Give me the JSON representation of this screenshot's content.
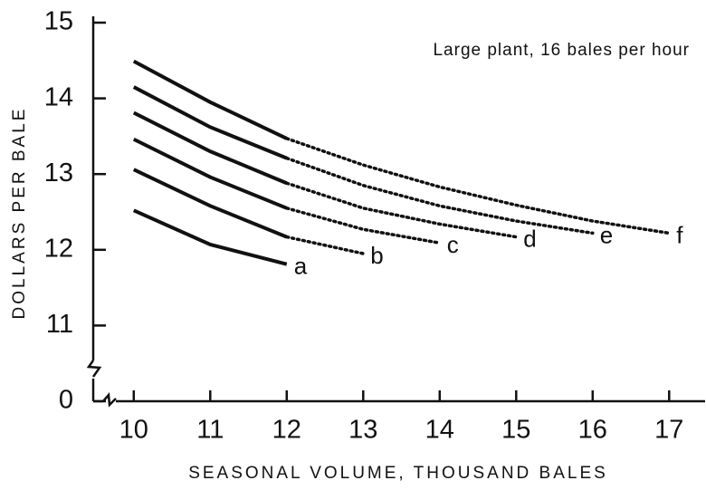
{
  "chart_data": {
    "type": "line",
    "annotation": "Large plant, 16 bales per hour",
    "x_label": "SEASONAL VOLUME, THOUSAND BALES",
    "y_label": "DOLLARS PER BALE",
    "x": [
      10,
      11,
      12,
      13,
      14,
      15,
      16,
      17
    ],
    "solid_xlim": [
      10,
      12
    ],
    "color": "#111111",
    "series": [
      {
        "name": "a",
        "values": [
          12.52,
          12.07,
          11.81,
          null,
          null,
          null,
          null,
          null
        ]
      },
      {
        "name": "b",
        "values": [
          13.06,
          12.58,
          12.17,
          11.95,
          null,
          null,
          null,
          null
        ]
      },
      {
        "name": "c",
        "values": [
          13.46,
          12.96,
          12.55,
          12.27,
          12.09,
          null,
          null,
          null
        ]
      },
      {
        "name": "d",
        "values": [
          13.81,
          13.3,
          12.88,
          12.55,
          12.34,
          12.17,
          null,
          null
        ]
      },
      {
        "name": "e",
        "values": [
          14.15,
          13.62,
          13.21,
          12.85,
          12.58,
          12.38,
          12.22,
          null
        ]
      },
      {
        "name": "f",
        "values": [
          14.49,
          13.95,
          13.47,
          13.12,
          12.83,
          12.59,
          12.38,
          12.22
        ]
      }
    ],
    "xlim": [
      9.47,
      17.47
    ],
    "xticks": [
      10,
      11,
      12,
      13,
      14,
      15,
      16,
      17
    ],
    "ylim": [
      10,
      15
    ],
    "yticks": [
      {
        "value": 10,
        "label": "0"
      },
      11,
      12,
      13,
      14,
      15
    ],
    "grid": false
  }
}
